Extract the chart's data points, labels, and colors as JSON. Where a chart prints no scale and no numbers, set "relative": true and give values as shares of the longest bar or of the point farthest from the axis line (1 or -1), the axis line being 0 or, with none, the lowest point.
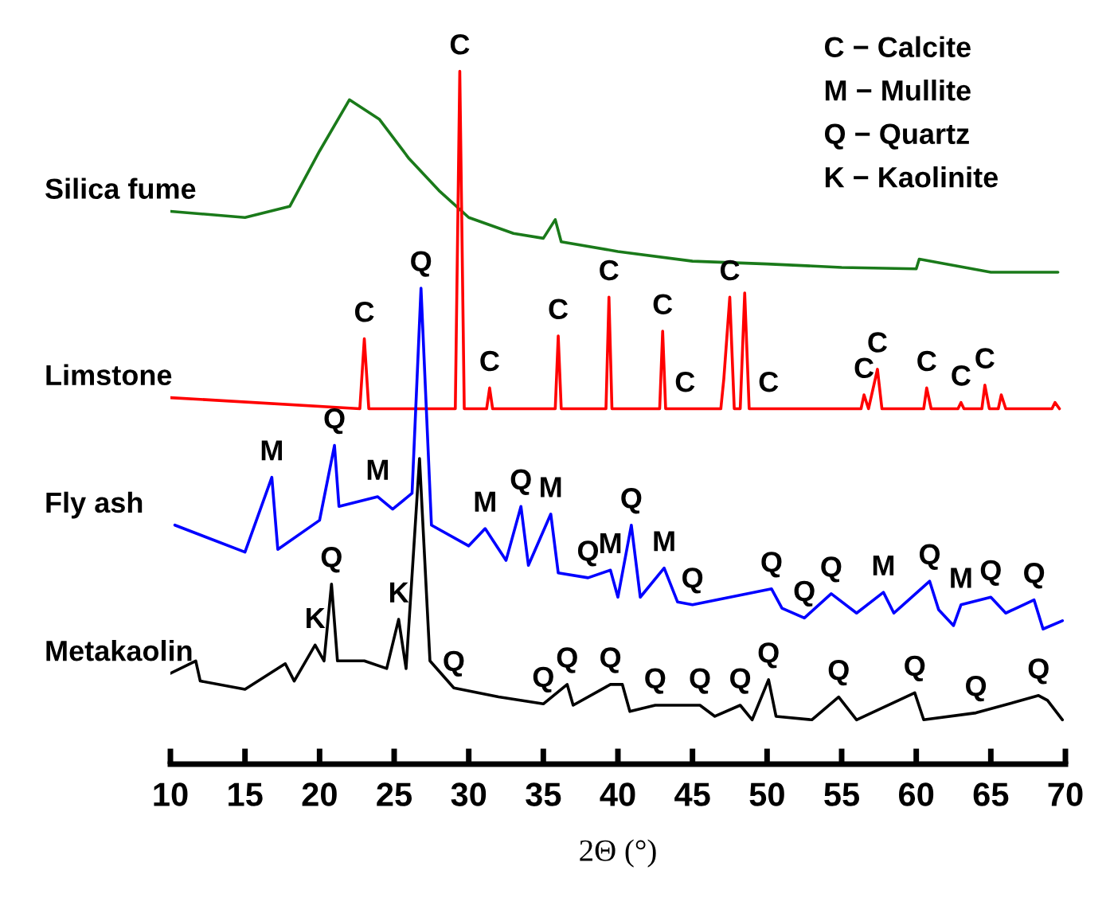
{
  "chart_data": {
    "type": "line",
    "relative": true,
    "xlabel": "2Θ (°)",
    "xlim": [
      10,
      70
    ],
    "xticks": [
      10,
      15,
      20,
      25,
      30,
      35,
      40,
      45,
      50,
      55,
      60,
      65,
      70
    ],
    "tick_labels": "x",
    "grid": false,
    "series": [
      {
        "name": "Silica fume",
        "color": "#1a7a1a",
        "x": [
          10,
          15,
          18,
          20,
          22,
          24,
          26,
          28,
          30,
          33,
          35,
          35.8,
          36.2,
          40,
          45,
          50,
          55,
          60,
          60.2,
          65,
          69.5
        ],
        "values": [
          0.798,
          0.789,
          0.805,
          0.885,
          0.959,
          0.931,
          0.874,
          0.828,
          0.789,
          0.766,
          0.759,
          0.786,
          0.754,
          0.74,
          0.726,
          0.722,
          0.717,
          0.715,
          0.729,
          0.71,
          0.71
        ]
      },
      {
        "name": "Limstone",
        "color": "#ff0000",
        "x": [
          10,
          22.7,
          23,
          23.3,
          29.1,
          29.4,
          29.7,
          31.2,
          31.4,
          31.6,
          35.8,
          36,
          36.2,
          39.2,
          39.4,
          39.6,
          42.8,
          43,
          43.2,
          46.9,
          47.1,
          47.5,
          47.8,
          48.2,
          48.5,
          48.8,
          56.3,
          56.5,
          56.8,
          57.4,
          57.7,
          60.5,
          60.7,
          61,
          62.8,
          63,
          63.2,
          64.4,
          64.6,
          64.9,
          65.5,
          65.7,
          66,
          69.1,
          69.3,
          69.6
        ],
        "values": [
          0.529,
          0.513,
          0.614,
          0.513,
          0.513,
          1.0,
          0.513,
          0.513,
          0.543,
          0.513,
          0.513,
          0.618,
          0.513,
          0.513,
          0.674,
          0.513,
          0.513,
          0.625,
          0.513,
          0.513,
          0.556,
          0.674,
          0.513,
          0.513,
          0.68,
          0.513,
          0.513,
          0.533,
          0.513,
          0.57,
          0.513,
          0.513,
          0.543,
          0.513,
          0.513,
          0.522,
          0.513,
          0.513,
          0.547,
          0.513,
          0.513,
          0.533,
          0.513,
          0.513,
          0.522,
          0.513
        ]
      },
      {
        "name": "Fly ash",
        "color": "#0000ff",
        "x": [
          10.3,
          15,
          16.8,
          17.2,
          20,
          21,
          21.3,
          23.9,
          24.9,
          26.2,
          26.8,
          27.5,
          30,
          31.1,
          32.5,
          33.5,
          34,
          35.5,
          36,
          38,
          39.5,
          40,
          40.9,
          41.5,
          43.1,
          44,
          45,
          50.3,
          51,
          52.5,
          54.3,
          56,
          57.8,
          58.5,
          60.9,
          61.5,
          62.5,
          63,
          65,
          66,
          67.9,
          68.5,
          69.8
        ],
        "values": [
          0.345,
          0.306,
          0.414,
          0.31,
          0.352,
          0.46,
          0.372,
          0.386,
          0.368,
          0.391,
          0.687,
          0.345,
          0.315,
          0.34,
          0.294,
          0.372,
          0.287,
          0.361,
          0.276,
          0.269,
          0.28,
          0.241,
          0.345,
          0.241,
          0.283,
          0.234,
          0.23,
          0.253,
          0.225,
          0.211,
          0.246,
          0.218,
          0.248,
          0.218,
          0.264,
          0.223,
          0.2,
          0.23,
          0.241,
          0.218,
          0.237,
          0.195,
          0.207
        ]
      },
      {
        "name": "Metakaolin",
        "color": "#000000",
        "x": [
          10,
          11.7,
          12,
          15,
          17.7,
          18.3,
          19.7,
          20.3,
          20.8,
          21.2,
          23,
          24.5,
          25.3,
          25.8,
          26.7,
          27.4,
          29,
          32,
          35,
          36.6,
          37,
          39.5,
          40.3,
          40.8,
          42.5,
          45.5,
          46.5,
          48.2,
          49,
          50.1,
          50.6,
          53,
          54.8,
          56,
          59.9,
          60.5,
          64,
          68.2,
          68.8,
          69.8
        ],
        "values": [
          0.131,
          0.149,
          0.12,
          0.108,
          0.145,
          0.12,
          0.172,
          0.149,
          0.26,
          0.149,
          0.149,
          0.138,
          0.209,
          0.138,
          0.441,
          0.149,
          0.11,
          0.097,
          0.087,
          0.115,
          0.085,
          0.115,
          0.115,
          0.076,
          0.085,
          0.085,
          0.069,
          0.085,
          0.064,
          0.122,
          0.069,
          0.064,
          0.097,
          0.064,
          0.103,
          0.064,
          0.074,
          0.099,
          0.092,
          0.064
        ]
      }
    ],
    "annotations": [
      "C − Calcite",
      "M − Mullite",
      "Q − Quartz",
      "K − Kaolinite",
      {
        "text": "C",
        "x": 23,
        "y": 0.614
      },
      {
        "text": "C",
        "x": 29.4,
        "y": 1.0
      },
      {
        "text": "C",
        "x": 31.4,
        "y": 0.543
      },
      {
        "text": "C",
        "x": 36,
        "y": 0.618
      },
      {
        "text": "C",
        "x": 39.4,
        "y": 0.674
      },
      {
        "text": "C",
        "x": 43,
        "y": 0.625
      },
      {
        "text": "C",
        "x": 47.5,
        "y": 0.674
      },
      {
        "text": "C",
        "x": 44.5,
        "y": 0.513
      },
      {
        "text": "C",
        "x": 50.1,
        "y": 0.513
      },
      {
        "text": "C",
        "x": 56.5,
        "y": 0.533
      },
      {
        "text": "C",
        "x": 57.4,
        "y": 0.57
      },
      {
        "text": "C",
        "x": 60.7,
        "y": 0.543
      },
      {
        "text": "C",
        "x": 63,
        "y": 0.522
      },
      {
        "text": "C",
        "x": 64.6,
        "y": 0.547
      },
      {
        "text": "M",
        "x": 16.8,
        "y": 0.414
      },
      {
        "text": "Q",
        "x": 21,
        "y": 0.46
      },
      {
        "text": "M",
        "x": 23.9,
        "y": 0.386
      },
      {
        "text": "Q",
        "x": 26.8,
        "y": 0.687
      },
      {
        "text": "M",
        "x": 31.1,
        "y": 0.34
      },
      {
        "text": "Q",
        "x": 33.5,
        "y": 0.372
      },
      {
        "text": "M",
        "x": 35.5,
        "y": 0.361
      },
      {
        "text": "Q",
        "x": 38,
        "y": 0.269
      },
      {
        "text": "M",
        "x": 39.5,
        "y": 0.28
      },
      {
        "text": "Q",
        "x": 40.9,
        "y": 0.345
      },
      {
        "text": "M",
        "x": 43.1,
        "y": 0.283
      },
      {
        "text": "Q",
        "x": 45,
        "y": 0.23
      },
      {
        "text": "Q",
        "x": 50.3,
        "y": 0.253
      },
      {
        "text": "Q",
        "x": 52.5,
        "y": 0.211
      },
      {
        "text": "Q",
        "x": 54.3,
        "y": 0.246
      },
      {
        "text": "M",
        "x": 57.8,
        "y": 0.248
      },
      {
        "text": "Q",
        "x": 60.9,
        "y": 0.264
      },
      {
        "text": "M",
        "x": 63,
        "y": 0.23
      },
      {
        "text": "Q",
        "x": 65,
        "y": 0.241
      },
      {
        "text": "Q",
        "x": 67.9,
        "y": 0.237
      },
      {
        "text": "K",
        "x": 19.7,
        "y": 0.172
      },
      {
        "text": "Q",
        "x": 20.8,
        "y": 0.26
      },
      {
        "text": "K",
        "x": 25.3,
        "y": 0.209
      },
      {
        "text": "Q",
        "x": 29,
        "y": 0.11
      },
      {
        "text": "Q",
        "x": 35,
        "y": 0.087
      },
      {
        "text": "Q",
        "x": 36.6,
        "y": 0.115
      },
      {
        "text": "Q",
        "x": 39.5,
        "y": 0.115
      },
      {
        "text": "Q",
        "x": 42.5,
        "y": 0.085
      },
      {
        "text": "Q",
        "x": 45.5,
        "y": 0.085
      },
      {
        "text": "Q",
        "x": 48.2,
        "y": 0.085
      },
      {
        "text": "Q",
        "x": 50.1,
        "y": 0.122
      },
      {
        "text": "Q",
        "x": 54.8,
        "y": 0.097
      },
      {
        "text": "Q",
        "x": 59.9,
        "y": 0.103
      },
      {
        "text": "Q",
        "x": 64,
        "y": 0.074
      },
      {
        "text": "Q",
        "x": 68.2,
        "y": 0.099
      }
    ]
  }
}
